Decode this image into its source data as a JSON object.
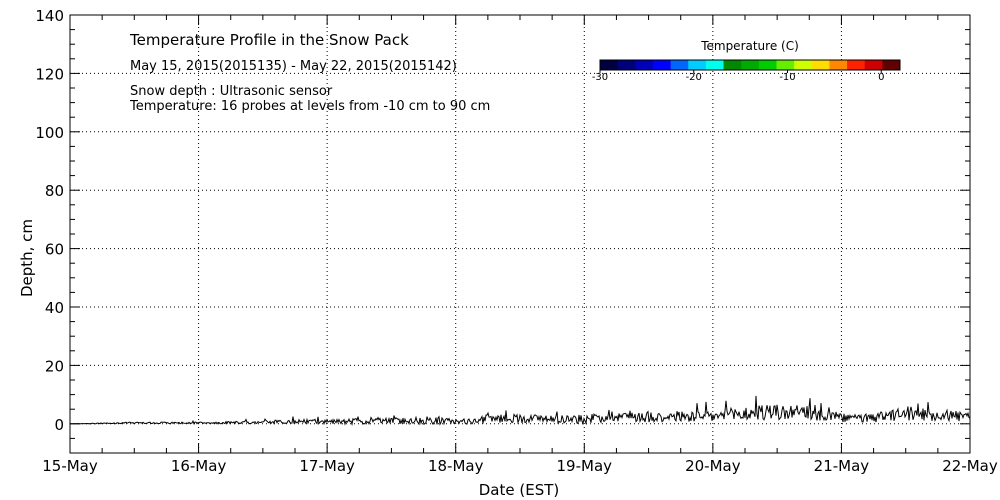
{
  "chart_data": {
    "type": "line",
    "title": "Temperature Profile in the Snow Pack",
    "subtitle": "May 15, 2015(2015135) - May 22, 2015(2015142)",
    "annotations": [
      "Snow depth : Ultrasonic sensor",
      "Temperature: 16 probes at levels from -10 cm to 90 cm"
    ],
    "xlabel": "Date (EST)",
    "ylabel": "Depth, cm",
    "xlim": [
      "2015-05-15",
      "2015-05-22"
    ],
    "ylim": [
      -10,
      140
    ],
    "x_ticks": [
      "15-May",
      "16-May",
      "17-May",
      "18-May",
      "19-May",
      "20-May",
      "21-May",
      "22-May"
    ],
    "y_ticks": [
      0,
      20,
      40,
      60,
      80,
      100,
      120,
      140
    ],
    "grid": true,
    "series": [
      {
        "x": [
          "2015-05-15",
          "2015-05-15T12:00",
          "2015-05-16",
          "2015-05-16T10:00",
          "2015-05-16T20:00",
          "2015-05-17",
          "2015-05-17T06:00",
          "2015-05-17T12:00",
          "2015-05-17T20:00",
          "2015-05-18",
          "2015-05-18T04:00",
          "2015-05-18T06:00",
          "2015-05-18T12:00",
          "2015-05-18T18:00",
          "2015-05-19",
          "2015-05-19T06:00",
          "2015-05-19T12:00",
          "2015-05-19T18:00",
          "2015-05-20",
          "2015-05-20T06:00",
          "2015-05-20T12:00",
          "2015-05-20T18:00",
          "2015-05-21",
          "2015-05-21T06:00",
          "2015-05-21T12:00",
          "2015-05-21T18:00",
          "2015-05-22"
        ],
        "values": [
          0,
          0.3,
          0.3,
          0.5,
          0.8,
          0.8,
          0.8,
          1,
          1.2,
          0.8,
          0.8,
          1.8,
          1.8,
          1.8,
          1.5,
          2.8,
          2.5,
          2.5,
          2.5,
          3.5,
          4,
          3.5,
          2,
          1.8,
          3.5,
          3,
          2.5
        ]
      }
    ],
    "noise_amplitude": [
      0,
      0.3,
      0.3,
      0.5,
      0.8,
      0.8,
      1,
      1,
      1.5,
      0.8,
      1,
      1.5,
      1.5,
      1.5,
      1.5,
      2,
      2,
      2,
      2,
      2.5,
      3,
      2.5,
      1.5,
      1.5,
      2.5,
      2,
      2
    ],
    "colorbar": {
      "title": "Temperature (C)",
      "tick_labels": [
        "-30",
        "-20",
        "-10",
        "0"
      ],
      "ticks": [
        -30,
        -20,
        -10,
        0
      ],
      "range": [
        -30,
        2
      ],
      "colors": [
        "#000040",
        "#00007a",
        "#0000b8",
        "#0000ff",
        "#0066ff",
        "#00ccff",
        "#00ffee",
        "#008800",
        "#00aa00",
        "#00cc00",
        "#66ee00",
        "#ccff00",
        "#ffdd00",
        "#ff8800",
        "#ff2200",
        "#cc0000",
        "#600000"
      ]
    }
  }
}
